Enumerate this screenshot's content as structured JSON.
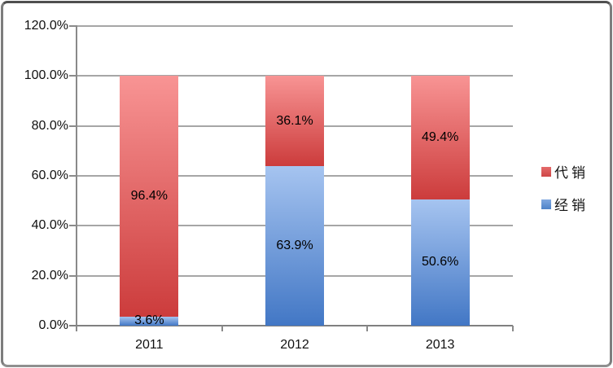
{
  "window": {
    "background": "#ffffff",
    "frame_border_color": "#6e6e6e"
  },
  "style": {
    "axis_color": "#8a8a8a",
    "axis_strong_color": "#808080",
    "gridline_color": "#a6a6a6",
    "text_color": "#111111",
    "data_label_color": "#000000"
  },
  "chart_data": {
    "type": "bar",
    "subtype": "stacked-100-percent",
    "title": "",
    "xlabel": "",
    "ylabel": "",
    "categories": [
      "2011",
      "2012",
      "2013"
    ],
    "series": [
      {
        "name": "经销",
        "values": [
          3.6,
          63.9,
          50.6
        ],
        "labels": [
          "3.6%",
          "63.9%",
          "50.6%"
        ],
        "color_top": "#A6C4F0",
        "color_bottom": "#4277C5"
      },
      {
        "name": "代销",
        "values": [
          96.4,
          36.1,
          49.4
        ],
        "labels": [
          "96.4%",
          "36.1%",
          "49.4%"
        ],
        "color_top": "#F89494",
        "color_bottom": "#CC3C3C"
      }
    ],
    "ylim": [
      0,
      120
    ],
    "y_tick_step": 20,
    "y_tick_labels": [
      "0.0%",
      "20.0%",
      "40.0%",
      "60.0%",
      "80.0%",
      "100.0%",
      "120.0%"
    ],
    "grid": true,
    "legend_position": "right",
    "legend_order": [
      "代销",
      "经销"
    ],
    "legend": [
      {
        "label": "代销",
        "color_top": "#E56A6A",
        "color_bottom": "#CE4646"
      },
      {
        "label": "经销",
        "color_top": "#7FA8E0",
        "color_bottom": "#4E82C8"
      }
    ]
  }
}
